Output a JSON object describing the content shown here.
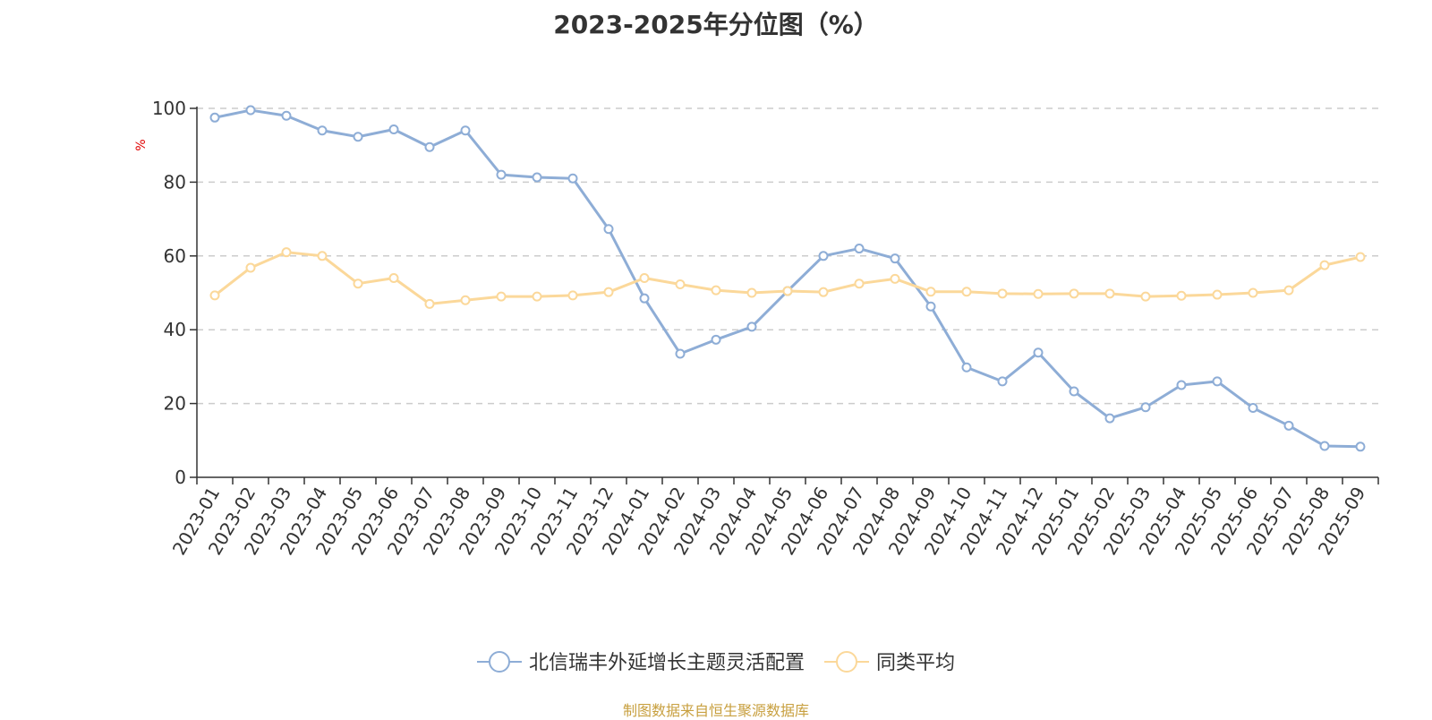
{
  "chart_data": {
    "type": "line",
    "title": "2023-2025年分位图（%）",
    "ylabel": "%",
    "xlabel": "",
    "ylim": [
      0,
      100
    ],
    "yticks": [
      0,
      20,
      40,
      60,
      80,
      100
    ],
    "grid": true,
    "legend_position": "bottom",
    "categories": [
      "2023-01",
      "2023-02",
      "2023-03",
      "2023-04",
      "2023-05",
      "2023-06",
      "2023-07",
      "2023-08",
      "2023-09",
      "2023-10",
      "2023-11",
      "2023-12",
      "2024-01",
      "2024-02",
      "2024-03",
      "2024-04",
      "2024-05",
      "2024-06",
      "2024-07",
      "2024-08",
      "2024-09",
      "2024-10",
      "2024-11",
      "2024-12",
      "2025-01",
      "2025-02",
      "2025-03",
      "2025-04",
      "2025-05",
      "2025-06",
      "2025-07",
      "2025-08",
      "2025-09"
    ],
    "series": [
      {
        "name": "北信瑞丰外延增长主题灵活配置",
        "color": "#8eadd6",
        "values": [
          97.5,
          99.5,
          98,
          94,
          92.3,
          94.3,
          89.5,
          94,
          82,
          81.3,
          81,
          67.3,
          48.5,
          33.5,
          37.3,
          40.8,
          50.5,
          60,
          62,
          59.3,
          46.3,
          29.8,
          26,
          33.8,
          23.3,
          16,
          19,
          25,
          26,
          18.8,
          14,
          8.5,
          8.3
        ]
      },
      {
        "name": "同类平均",
        "color": "#fbd89a",
        "values": [
          49.3,
          56.8,
          61,
          60,
          52.5,
          54,
          47,
          48,
          49,
          49,
          49.3,
          50.2,
          54,
          52.3,
          50.7,
          50,
          50.5,
          50.2,
          52.5,
          53.8,
          50.3,
          50.3,
          49.8,
          49.7,
          49.8,
          49.8,
          49,
          49.2,
          49.5,
          50,
          50.7,
          57.5,
          59.7
        ]
      }
    ]
  },
  "source_note": "制图数据来自恒生聚源数据库"
}
